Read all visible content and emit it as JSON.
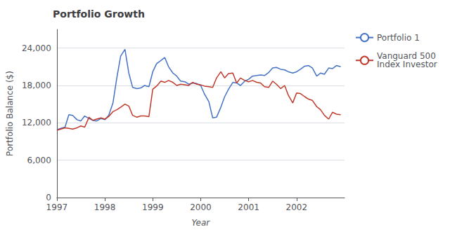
{
  "chart_data": {
    "type": "line",
    "title": "Portfolio Growth",
    "xlabel": "Year",
    "ylabel": "Portfolio Balance ($)",
    "x": [
      1997.0,
      1997.08,
      1997.17,
      1997.25,
      1997.33,
      1997.42,
      1997.5,
      1997.58,
      1997.67,
      1997.75,
      1997.83,
      1997.92,
      1998.0,
      1998.08,
      1998.17,
      1998.25,
      1998.33,
      1998.42,
      1998.5,
      1998.58,
      1998.67,
      1998.75,
      1998.83,
      1998.92,
      1999.0,
      1999.08,
      1999.17,
      1999.25,
      1999.33,
      1999.42,
      1999.5,
      1999.58,
      1999.67,
      1999.75,
      1999.83,
      1999.92,
      2000.0,
      2000.08,
      2000.17,
      2000.25,
      2000.33,
      2000.42,
      2000.5,
      2000.58,
      2000.67,
      2000.75,
      2000.83,
      2000.92,
      2001.0,
      2001.08,
      2001.17,
      2001.25,
      2001.33,
      2001.42,
      2001.5,
      2001.58,
      2001.67,
      2001.75,
      2001.83,
      2001.92,
      2002.0,
      2002.08,
      2002.17,
      2002.25,
      2002.33,
      2002.42,
      2002.5,
      2002.58,
      2002.67,
      2002.75,
      2002.83,
      2002.92
    ],
    "series": [
      {
        "name": "Portfolio 1",
        "color": "#4472C4",
        "values": [
          10900,
          11100,
          11300,
          13300,
          13200,
          12500,
          12300,
          13100,
          12700,
          12400,
          12300,
          12700,
          12500,
          13200,
          15200,
          19200,
          22700,
          23800,
          20000,
          17700,
          17500,
          17600,
          18000,
          17800,
          20200,
          21500,
          22000,
          22500,
          21000,
          20000,
          19500,
          18700,
          18600,
          18200,
          18400,
          18300,
          18000,
          16600,
          15400,
          12800,
          12900,
          14500,
          16200,
          17400,
          18500,
          18400,
          18000,
          18700,
          19000,
          19500,
          19600,
          19700,
          19600,
          20100,
          20800,
          20900,
          20600,
          20500,
          20200,
          20000,
          20200,
          20600,
          21100,
          21200,
          20800,
          19500,
          20000,
          19800,
          20800,
          20700,
          21200,
          21000
        ]
      },
      {
        "name": "Vanguard 500\nIndex Investor",
        "color": "#C0392B",
        "values": [
          10800,
          11000,
          11200,
          11100,
          11000,
          11200,
          11500,
          11300,
          12900,
          12400,
          12600,
          12800,
          12600,
          13000,
          13800,
          14100,
          14500,
          15000,
          14700,
          13200,
          12900,
          13100,
          13100,
          13000,
          17400,
          17900,
          18700,
          18500,
          18800,
          18500,
          18000,
          18200,
          18100,
          18000,
          18500,
          18200,
          18100,
          17900,
          17800,
          17700,
          19200,
          20200,
          19200,
          19900,
          20000,
          18400,
          19200,
          18800,
          18600,
          18800,
          18500,
          18400,
          17800,
          17700,
          18700,
          18200,
          17500,
          18000,
          16400,
          15200,
          16800,
          16700,
          16200,
          15800,
          15600,
          14600,
          14100,
          13200,
          12600,
          13700,
          13400,
          13300
        ]
      }
    ],
    "xlim": [
      1997.0,
      2003.0
    ],
    "xticks": [
      1997,
      1998,
      1999,
      2000,
      2001,
      2002
    ],
    "ylim": [
      0,
      27000
    ],
    "yticks": [
      0,
      {
        "value": 6000,
        "label": "6,000"
      },
      {
        "value": 12000,
        "label": "12,000"
      },
      {
        "value": 18000,
        "label": "18,000"
      },
      {
        "value": 24000,
        "label": "24,000"
      }
    ],
    "grid": true,
    "legend": "right"
  }
}
